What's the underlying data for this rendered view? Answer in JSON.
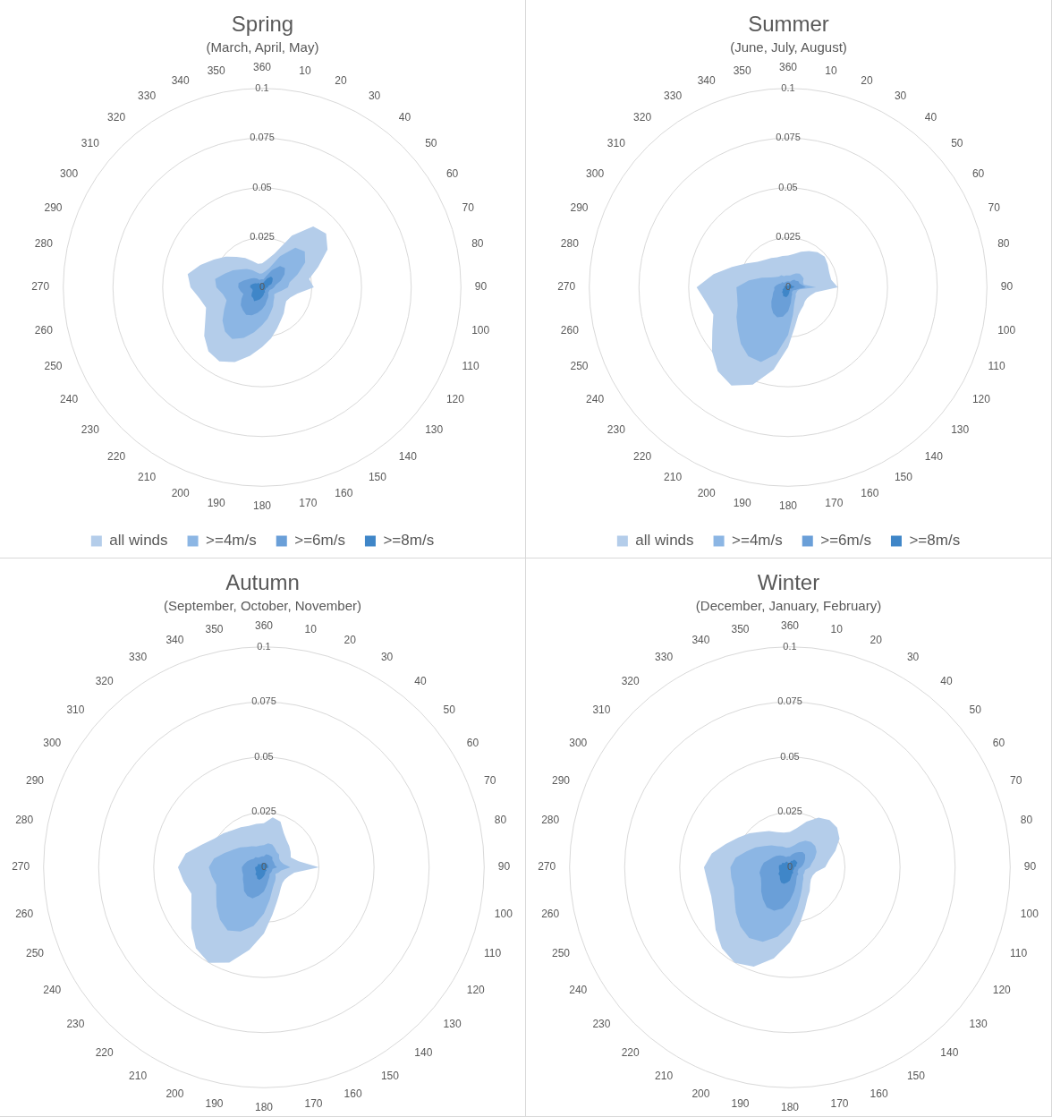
{
  "chart_data": [
    {
      "type": "radar",
      "title": "Spring",
      "subtitle": "(March, April, May)",
      "categories": [
        "360",
        "10",
        "20",
        "30",
        "40",
        "50",
        "60",
        "70",
        "80",
        "90",
        "100",
        "110",
        "120",
        "130",
        "140",
        "150",
        "160",
        "170",
        "180",
        "190",
        "200",
        "210",
        "220",
        "230",
        "240",
        "250",
        "260",
        "270",
        "280",
        "290",
        "300",
        "310",
        "320",
        "330",
        "340",
        "350"
      ],
      "ylim": [
        0,
        0.1
      ],
      "yticks": [
        0,
        0.025,
        0.05,
        0.075,
        0.1
      ],
      "grid": true,
      "legend": "bottom",
      "marker": "none",
      "series": [
        {
          "name": "all winds",
          "color": "#b4cdea",
          "values": [
            0.012,
            0.014,
            0.018,
            0.03,
            0.04,
            0.042,
            0.038,
            0.03,
            0.024,
            0.026,
            0.018,
            0.015,
            0.014,
            0.015,
            0.017,
            0.019,
            0.022,
            0.026,
            0.03,
            0.035,
            0.04,
            0.043,
            0.042,
            0.038,
            0.033,
            0.03,
            0.032,
            0.036,
            0.038,
            0.033,
            0.028,
            0.024,
            0.02,
            0.017,
            0.014,
            0.012
          ]
        },
        {
          "name": ">=4m/s",
          "color": "#8cb6e4",
          "values": [
            0.007,
            0.008,
            0.01,
            0.018,
            0.026,
            0.028,
            0.025,
            0.019,
            0.014,
            0.013,
            0.01,
            0.008,
            0.007,
            0.008,
            0.009,
            0.011,
            0.013,
            0.016,
            0.019,
            0.023,
            0.027,
            0.03,
            0.029,
            0.026,
            0.022,
            0.019,
            0.02,
            0.023,
            0.024,
            0.02,
            0.017,
            0.014,
            0.012,
            0.01,
            0.008,
            0.007
          ]
        },
        {
          "name": ">=6m/s",
          "color": "#6a9fd8",
          "values": [
            0.004,
            0.004,
            0.006,
            0.01,
            0.014,
            0.015,
            0.013,
            0.01,
            0.007,
            0.006,
            0.005,
            0.004,
            0.004,
            0.004,
            0.005,
            0.006,
            0.007,
            0.009,
            0.011,
            0.013,
            0.015,
            0.016,
            0.015,
            0.014,
            0.012,
            0.01,
            0.011,
            0.012,
            0.012,
            0.01,
            0.008,
            0.007,
            0.006,
            0.005,
            0.004,
            0.004
          ]
        },
        {
          "name": ">=8m/s",
          "color": "#3f86c8",
          "values": [
            0.002,
            0.002,
            0.003,
            0.005,
            0.007,
            0.007,
            0.006,
            0.005,
            0.003,
            0.003,
            0.002,
            0.002,
            0.002,
            0.002,
            0.002,
            0.003,
            0.003,
            0.004,
            0.005,
            0.006,
            0.007,
            0.008,
            0.007,
            0.007,
            0.006,
            0.005,
            0.005,
            0.006,
            0.006,
            0.005,
            0.004,
            0.003,
            0.003,
            0.002,
            0.002,
            0.002
          ]
        }
      ]
    },
    {
      "type": "radar",
      "title": "Summer",
      "subtitle": "(June, July, August)",
      "categories": [
        "360",
        "10",
        "20",
        "30",
        "40",
        "50",
        "60",
        "70",
        "80",
        "90",
        "100",
        "110",
        "120",
        "130",
        "140",
        "150",
        "160",
        "170",
        "180",
        "190",
        "200",
        "210",
        "220",
        "230",
        "240",
        "250",
        "260",
        "270",
        "280",
        "290",
        "300",
        "310",
        "320",
        "330",
        "340",
        "350"
      ],
      "ylim": [
        0,
        0.1
      ],
      "yticks": [
        0,
        0.025,
        0.05,
        0.075,
        0.1
      ],
      "grid": true,
      "legend": "bottom",
      "marker": "none",
      "series": [
        {
          "name": "all winds",
          "color": "#b4cdea",
          "values": [
            0.016,
            0.017,
            0.019,
            0.021,
            0.023,
            0.024,
            0.023,
            0.022,
            0.022,
            0.025,
            0.014,
            0.012,
            0.011,
            0.011,
            0.012,
            0.013,
            0.015,
            0.02,
            0.03,
            0.042,
            0.052,
            0.057,
            0.055,
            0.05,
            0.044,
            0.04,
            0.042,
            0.046,
            0.038,
            0.03,
            0.024,
            0.02,
            0.018,
            0.017,
            0.016,
            0.016
          ]
        },
        {
          "name": ">=4m/s",
          "color": "#8cb6e4",
          "values": [
            0.006,
            0.006,
            0.007,
            0.008,
            0.009,
            0.009,
            0.009,
            0.008,
            0.008,
            0.014,
            0.006,
            0.005,
            0.005,
            0.005,
            0.006,
            0.007,
            0.009,
            0.014,
            0.024,
            0.034,
            0.04,
            0.04,
            0.037,
            0.033,
            0.03,
            0.027,
            0.026,
            0.026,
            0.02,
            0.014,
            0.01,
            0.008,
            0.007,
            0.007,
            0.006,
            0.006
          ]
        },
        {
          "name": ">=6m/s",
          "color": "#6a9fd8",
          "values": [
            0.003,
            0.003,
            0.003,
            0.004,
            0.005,
            0.005,
            0.006,
            0.006,
            0.007,
            0.009,
            0.005,
            0.004,
            0.003,
            0.003,
            0.003,
            0.004,
            0.005,
            0.008,
            0.012,
            0.015,
            0.016,
            0.015,
            0.013,
            0.011,
            0.009,
            0.008,
            0.007,
            0.007,
            0.006,
            0.005,
            0.004,
            0.004,
            0.003,
            0.003,
            0.003,
            0.003
          ]
        },
        {
          "name": ">=8m/s",
          "color": "#3f86c8",
          "values": [
            0.001,
            0.001,
            0.001,
            0.002,
            0.002,
            0.002,
            0.002,
            0.002,
            0.003,
            0.003,
            0.002,
            0.002,
            0.001,
            0.001,
            0.001,
            0.002,
            0.002,
            0.003,
            0.004,
            0.005,
            0.005,
            0.005,
            0.004,
            0.004,
            0.003,
            0.003,
            0.002,
            0.002,
            0.002,
            0.002,
            0.001,
            0.001,
            0.001,
            0.001,
            0.001,
            0.001
          ]
        }
      ]
    },
    {
      "type": "radar",
      "title": "Autumn",
      "subtitle": "(September, October, November)",
      "categories": [
        "360",
        "10",
        "20",
        "30",
        "40",
        "50",
        "60",
        "70",
        "80",
        "90",
        "100",
        "110",
        "120",
        "130",
        "140",
        "150",
        "160",
        "170",
        "180",
        "190",
        "200",
        "210",
        "220",
        "230",
        "240",
        "250",
        "260",
        "270",
        "280",
        "290",
        "300",
        "310",
        "320",
        "330",
        "340",
        "350"
      ],
      "ylim": [
        0,
        0.1
      ],
      "yticks": [
        0,
        0.025,
        0.05,
        0.075,
        0.1
      ],
      "grid": true,
      "legend": false,
      "marker": "none",
      "series": [
        {
          "color": "#b4cdea",
          "values": [
            0.02,
            0.023,
            0.022,
            0.018,
            0.016,
            0.015,
            0.014,
            0.013,
            0.016,
            0.025,
            0.014,
            0.012,
            0.011,
            0.011,
            0.012,
            0.014,
            0.017,
            0.022,
            0.03,
            0.038,
            0.046,
            0.05,
            0.048,
            0.043,
            0.038,
            0.035,
            0.037,
            0.039,
            0.036,
            0.03,
            0.026,
            0.024,
            0.022,
            0.021,
            0.02,
            0.02
          ]
        },
        {
          "color": "#8cb6e4",
          "values": [
            0.01,
            0.011,
            0.011,
            0.01,
            0.009,
            0.009,
            0.008,
            0.008,
            0.009,
            0.012,
            0.008,
            0.007,
            0.006,
            0.007,
            0.008,
            0.009,
            0.011,
            0.015,
            0.021,
            0.027,
            0.031,
            0.033,
            0.031,
            0.028,
            0.025,
            0.023,
            0.024,
            0.025,
            0.023,
            0.019,
            0.016,
            0.014,
            0.012,
            0.011,
            0.01,
            0.01
          ]
        },
        {
          "color": "#6a9fd8",
          "values": [
            0.005,
            0.006,
            0.006,
            0.006,
            0.006,
            0.005,
            0.005,
            0.005,
            0.005,
            0.006,
            0.004,
            0.004,
            0.004,
            0.004,
            0.004,
            0.005,
            0.006,
            0.008,
            0.011,
            0.013,
            0.015,
            0.015,
            0.014,
            0.012,
            0.011,
            0.01,
            0.01,
            0.01,
            0.009,
            0.008,
            0.007,
            0.006,
            0.006,
            0.005,
            0.005,
            0.005
          ]
        },
        {
          "color": "#3f86c8",
          "values": [
            0.002,
            0.002,
            0.002,
            0.002,
            0.002,
            0.002,
            0.002,
            0.002,
            0.002,
            0.002,
            0.002,
            0.001,
            0.001,
            0.001,
            0.002,
            0.002,
            0.002,
            0.003,
            0.004,
            0.005,
            0.006,
            0.006,
            0.005,
            0.005,
            0.004,
            0.004,
            0.004,
            0.004,
            0.003,
            0.003,
            0.003,
            0.002,
            0.002,
            0.002,
            0.002,
            0.002
          ]
        }
      ]
    },
    {
      "type": "radar",
      "title": "Winter",
      "subtitle": "(December, January, February)",
      "categories": [
        "360",
        "10",
        "20",
        "30",
        "40",
        "50",
        "60",
        "70",
        "80",
        "90",
        "100",
        "110",
        "120",
        "130",
        "140",
        "150",
        "160",
        "170",
        "180",
        "190",
        "200",
        "210",
        "220",
        "230",
        "240",
        "250",
        "260",
        "270",
        "280",
        "290",
        "300",
        "310",
        "320",
        "330",
        "340",
        "350"
      ],
      "ylim": [
        0,
        0.1
      ],
      "yticks": [
        0,
        0.025,
        0.05,
        0.075,
        0.1
      ],
      "grid": true,
      "legend": false,
      "marker": "none",
      "series": [
        {
          "color": "#b4cdea",
          "values": [
            0.016,
            0.018,
            0.022,
            0.026,
            0.028,
            0.028,
            0.026,
            0.022,
            0.018,
            0.016,
            0.012,
            0.011,
            0.011,
            0.012,
            0.014,
            0.016,
            0.02,
            0.026,
            0.034,
            0.042,
            0.048,
            0.05,
            0.048,
            0.044,
            0.04,
            0.038,
            0.038,
            0.039,
            0.036,
            0.031,
            0.027,
            0.024,
            0.021,
            0.019,
            0.017,
            0.016
          ]
        },
        {
          "color": "#8cb6e4",
          "values": [
            0.009,
            0.01,
            0.012,
            0.014,
            0.015,
            0.015,
            0.014,
            0.012,
            0.01,
            0.009,
            0.007,
            0.007,
            0.007,
            0.008,
            0.009,
            0.011,
            0.014,
            0.019,
            0.026,
            0.032,
            0.036,
            0.037,
            0.035,
            0.032,
            0.029,
            0.027,
            0.027,
            0.027,
            0.025,
            0.021,
            0.018,
            0.015,
            0.013,
            0.011,
            0.01,
            0.009
          ]
        },
        {
          "color": "#6a9fd8",
          "values": [
            0.005,
            0.006,
            0.007,
            0.008,
            0.009,
            0.009,
            0.008,
            0.007,
            0.006,
            0.005,
            0.004,
            0.004,
            0.004,
            0.005,
            0.005,
            0.006,
            0.008,
            0.011,
            0.015,
            0.019,
            0.021,
            0.021,
            0.019,
            0.017,
            0.015,
            0.014,
            0.014,
            0.013,
            0.012,
            0.01,
            0.009,
            0.008,
            0.007,
            0.006,
            0.005,
            0.005
          ]
        },
        {
          "color": "#3f86c8",
          "values": [
            0.002,
            0.003,
            0.003,
            0.004,
            0.004,
            0.004,
            0.004,
            0.003,
            0.003,
            0.002,
            0.002,
            0.002,
            0.002,
            0.002,
            0.002,
            0.003,
            0.003,
            0.004,
            0.006,
            0.007,
            0.008,
            0.008,
            0.007,
            0.006,
            0.006,
            0.005,
            0.005,
            0.005,
            0.005,
            0.004,
            0.004,
            0.003,
            0.003,
            0.003,
            0.002,
            0.002
          ]
        }
      ]
    }
  ]
}
